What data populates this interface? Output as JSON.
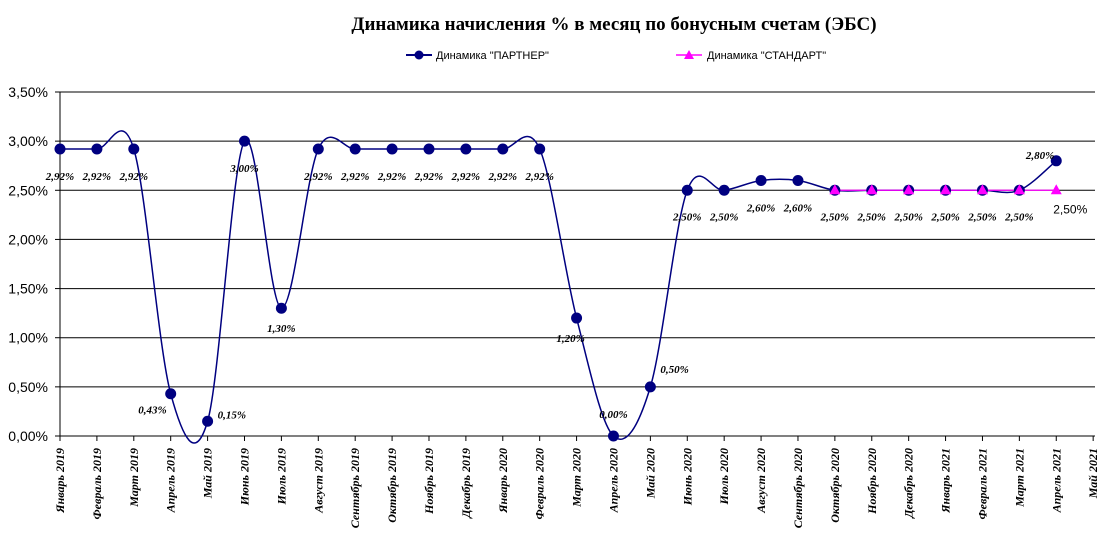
{
  "chart_data": {
    "type": "line",
    "title": "Динамика начисления % в месяц по бонусным счетам (ЭБС)",
    "categories": [
      "Январь 2019",
      "Февраль 2019",
      "Март 2019",
      "Апрель 2019",
      "Май 2019",
      "Июнь 2019",
      "Июль 2019",
      "Август 2019",
      "Сентябрь 2019",
      "Октябрь 2019",
      "Ноябрь 2019",
      "Декабрь 2019",
      "Январь 2020",
      "Февраль 2020",
      "Март 2020",
      "Апрель 2020",
      "Май 2020",
      "Июнь 2020",
      "Июль 2020",
      "Август 2020",
      "Сентябрь 2020",
      "Октябрь 2020",
      "Ноябрь 2020",
      "Декабрь 2020",
      "Январь 2021",
      "Февраль 2021",
      "Март 2021",
      "Апрель 2021",
      "Май 2021"
    ],
    "yticks": [
      "0,00%",
      "0,50%",
      "1,00%",
      "1,50%",
      "2,00%",
      "2,50%",
      "3,00%",
      "3,50%"
    ],
    "ylim": [
      0,
      3.5
    ],
    "grid": true,
    "legend_position": "top",
    "series": [
      {
        "name": "Динамика \"ПАРТНЕР\"",
        "color": "#000080",
        "marker": "circle",
        "smooth": true,
        "values": [
          2.92,
          2.92,
          2.92,
          0.43,
          0.15,
          3.0,
          1.3,
          2.92,
          2.92,
          2.92,
          2.92,
          2.92,
          2.92,
          2.92,
          1.2,
          0.0,
          0.5,
          2.5,
          2.5,
          2.6,
          2.6,
          2.5,
          2.5,
          2.5,
          2.5,
          2.5,
          2.5,
          2.8,
          null
        ],
        "labels": [
          "2,92%",
          "2,92%",
          "2,92%",
          "0,43%",
          "0,15%",
          "3,00%",
          "1,30%",
          "2,92%",
          "2,92%",
          "2,92%",
          "2,92%",
          "2,92%",
          "2,92%",
          "2,92%",
          "1,20%",
          "0,00%",
          "0,50%",
          "2,50%",
          "2,50%",
          "2,60%",
          "2,60%",
          "2,50%",
          "2,50%",
          "2,50%",
          "2,50%",
          "2,50%",
          "2,50%",
          "2,80%",
          ""
        ]
      },
      {
        "name": "Динамика \"СТАНДАРТ\"",
        "color": "#FF00FF",
        "marker": "triangle",
        "smooth": false,
        "values": [
          null,
          null,
          null,
          null,
          null,
          null,
          null,
          null,
          null,
          null,
          null,
          null,
          null,
          null,
          null,
          null,
          null,
          null,
          null,
          null,
          null,
          2.5,
          2.5,
          2.5,
          2.5,
          2.5,
          2.5,
          2.5,
          null
        ],
        "labels": [
          "",
          "",
          "",
          "",
          "",
          "",
          "",
          "",
          "",
          "",
          "",
          "",
          "",
          "",
          "",
          "",
          "",
          "",
          "",
          "",
          "",
          "",
          "",
          "",
          "",
          "",
          "",
          "2,50%",
          ""
        ]
      }
    ]
  }
}
